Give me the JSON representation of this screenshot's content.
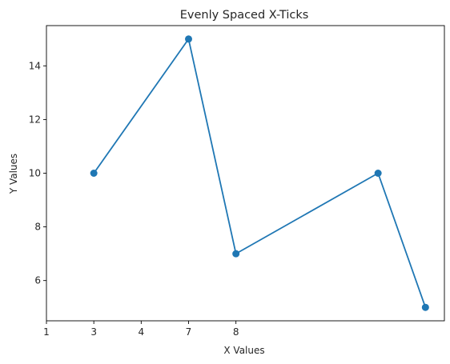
{
  "chart_data": {
    "type": "line",
    "title": "Evenly Spaced X-Ticks",
    "xlabel": "X Values",
    "ylabel": "Y Values",
    "x_tick_labels": [
      "1",
      "3",
      "4",
      "7",
      "8"
    ],
    "x_tick_positions": [
      0,
      1,
      2,
      3,
      4
    ],
    "xlim": [
      0,
      8.4
    ],
    "ylim": [
      4.5,
      15.5
    ],
    "y_ticks": [
      6,
      8,
      10,
      12,
      14
    ],
    "grid": false,
    "series": [
      {
        "x": [
          1,
          3,
          4,
          7,
          8
        ],
        "y": [
          10,
          15,
          7,
          10,
          5
        ],
        "color": "#1f77b4",
        "marker": "circle"
      }
    ]
  }
}
